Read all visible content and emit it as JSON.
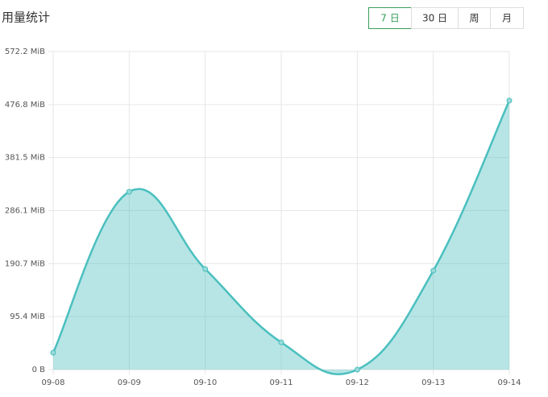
{
  "toolbar": {
    "buttons": [
      "7 日",
      "30 日",
      "周",
      "月"
    ],
    "selected_index": 0
  },
  "chart_data": {
    "type": "area",
    "title": "用量统计",
    "categories": [
      "09-08",
      "09-09",
      "09-10",
      "09-11",
      "09-12",
      "09-13",
      "09-14"
    ],
    "series": [
      {
        "color": "#4bbfbf",
        "values": [
          30.4,
          320,
          181,
          49,
          0,
          178,
          484
        ]
      }
    ],
    "ylim": [
      0,
      572.2
    ],
    "yticks": [
      {
        "value": 0,
        "label": "0 B"
      },
      {
        "value": 95.4,
        "label": "95.4 MiB"
      },
      {
        "value": 190.7,
        "label": "190.7 MiB"
      },
      {
        "value": 286.1,
        "label": "286.1 MiB"
      },
      {
        "value": 381.5,
        "label": "381.5 MiB"
      },
      {
        "value": 476.8,
        "label": "476.8 MiB"
      },
      {
        "value": 572.2,
        "label": "572.2 MiB"
      }
    ],
    "grid": true
  }
}
